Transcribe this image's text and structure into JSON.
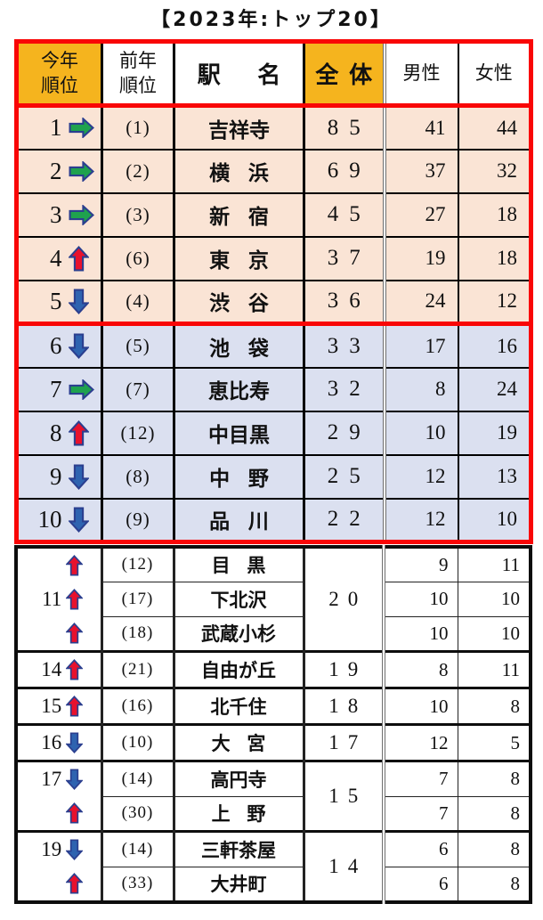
{
  "title": "【2023年:トップ20】",
  "colors": {
    "red_border": "#F90606",
    "header_orange": "#F5B41E",
    "peach_row": "#FAE4D5",
    "lavender_row": "#DBE0F0",
    "up_arrow": "#E8112D",
    "down_arrow": "#2E63B0",
    "same_arrow": "#1FA24E",
    "arrow_outline": "#2B3F8F"
  },
  "header": {
    "rank_line1": "今年",
    "rank_line2": "順位",
    "prev_line1": "前年",
    "prev_line2": "順位",
    "station": "駅名",
    "total": "全体",
    "male": "男性",
    "female": "女性"
  },
  "block_1_5": {
    "rows": [
      {
        "rank": "1",
        "arrow": "same",
        "prev": "(1)",
        "station": "吉祥寺",
        "total": "85",
        "male": "41",
        "female": "44"
      },
      {
        "rank": "2",
        "arrow": "same",
        "prev": "(2)",
        "station": "横 浜",
        "total": "69",
        "male": "37",
        "female": "32"
      },
      {
        "rank": "3",
        "arrow": "same",
        "prev": "(3)",
        "station": "新 宿",
        "total": "45",
        "male": "27",
        "female": "18"
      },
      {
        "rank": "4",
        "arrow": "up",
        "prev": "(6)",
        "station": "東 京",
        "total": "37",
        "male": "19",
        "female": "18"
      },
      {
        "rank": "5",
        "arrow": "down",
        "prev": "(4)",
        "station": "渋 谷",
        "total": "36",
        "male": "24",
        "female": "12"
      }
    ]
  },
  "block_6_10": {
    "rows": [
      {
        "rank": "6",
        "arrow": "down",
        "prev": "(5)",
        "station": "池 袋",
        "total": "33",
        "male": "17",
        "female": "16"
      },
      {
        "rank": "7",
        "arrow": "same",
        "prev": "(7)",
        "station": "恵比寿",
        "total": "32",
        "male": "8",
        "female": "24"
      },
      {
        "rank": "8",
        "arrow": "up",
        "prev": "(12)",
        "station": "中目黒",
        "total": "29",
        "male": "10",
        "female": "19"
      },
      {
        "rank": "9",
        "arrow": "down",
        "prev": "(8)",
        "station": "中 野",
        "total": "25",
        "male": "12",
        "female": "13"
      },
      {
        "rank": "10",
        "arrow": "down",
        "prev": "(9)",
        "station": "品 川",
        "total": "22",
        "male": "12",
        "female": "10"
      }
    ]
  },
  "block_11_20": {
    "groups": [
      {
        "rank": "11",
        "total": "20",
        "rows": [
          {
            "rank_label": "",
            "arrow": "up",
            "prev": "(12)",
            "station": "目 黒",
            "male": "9",
            "female": "11"
          },
          {
            "rank_label": "11",
            "arrow": "up",
            "prev": "(17)",
            "station": "下北沢",
            "male": "10",
            "female": "10"
          },
          {
            "rank_label": "",
            "arrow": "up",
            "prev": "(18)",
            "station": "武蔵小杉",
            "male": "10",
            "female": "10"
          }
        ]
      },
      {
        "rank": "14",
        "total": "19",
        "rows": [
          {
            "rank_label": "14",
            "arrow": "up",
            "prev": "(21)",
            "station": "自由が丘",
            "male": "8",
            "female": "11"
          }
        ]
      },
      {
        "rank": "15",
        "total": "18",
        "rows": [
          {
            "rank_label": "15",
            "arrow": "up",
            "prev": "(16)",
            "station": "北千住",
            "male": "10",
            "female": "8"
          }
        ]
      },
      {
        "rank": "16",
        "total": "17",
        "rows": [
          {
            "rank_label": "16",
            "arrow": "down",
            "prev": "(10)",
            "station": "大 宮",
            "male": "12",
            "female": "5"
          }
        ]
      },
      {
        "rank": "17",
        "total": "15",
        "rows": [
          {
            "rank_label": "17",
            "arrow": "down",
            "prev": "(14)",
            "station": "高円寺",
            "male": "7",
            "female": "8"
          },
          {
            "rank_label": "",
            "arrow": "up",
            "prev": "(30)",
            "station": "上 野",
            "male": "7",
            "female": "8"
          }
        ]
      },
      {
        "rank": "19",
        "total": "14",
        "rows": [
          {
            "rank_label": "19",
            "arrow": "down",
            "prev": "(14)",
            "station": "三軒茶屋",
            "male": "6",
            "female": "8"
          },
          {
            "rank_label": "",
            "arrow": "up",
            "prev": "(33)",
            "station": "大井町",
            "male": "6",
            "female": "8"
          }
        ]
      }
    ]
  }
}
